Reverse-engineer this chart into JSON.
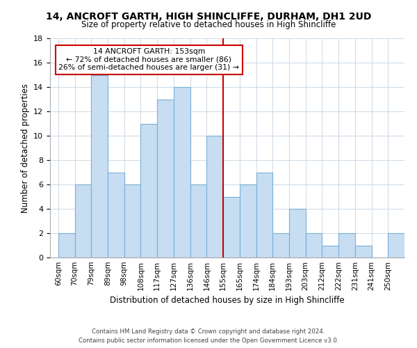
{
  "title": "14, ANCROFT GARTH, HIGH SHINCLIFFE, DURHAM, DH1 2UD",
  "subtitle": "Size of property relative to detached houses in High Shincliffe",
  "xlabel": "Distribution of detached houses by size in High Shincliffe",
  "ylabel": "Number of detached properties",
  "bin_labels": [
    "60sqm",
    "70sqm",
    "79sqm",
    "89sqm",
    "98sqm",
    "108sqm",
    "117sqm",
    "127sqm",
    "136sqm",
    "146sqm",
    "155sqm",
    "165sqm",
    "174sqm",
    "184sqm",
    "193sqm",
    "203sqm",
    "212sqm",
    "222sqm",
    "231sqm",
    "241sqm",
    "250sqm"
  ],
  "counts": [
    2,
    6,
    15,
    7,
    6,
    11,
    13,
    14,
    6,
    10,
    5,
    6,
    7,
    2,
    4,
    2,
    1,
    2,
    1,
    0,
    2
  ],
  "bar_color": "#c7ddf2",
  "bar_edge_color": "#7bafd4",
  "grid_color": "#d0dce8",
  "annotation_box_edge": "#cc0000",
  "property_line_color": "#cc0000",
  "property_bin_index": 10,
  "annotation_title": "14 ANCROFT GARTH: 153sqm",
  "annotation_line1": "← 72% of detached houses are smaller (86)",
  "annotation_line2": "26% of semi-detached houses are larger (31) →",
  "footer_line1": "Contains HM Land Registry data © Crown copyright and database right 2024.",
  "footer_line2": "Contains public sector information licensed under the Open Government Licence v3.0.",
  "ylim": [
    0,
    18
  ],
  "yticks": [
    0,
    2,
    4,
    6,
    8,
    10,
    12,
    14,
    16,
    18
  ]
}
